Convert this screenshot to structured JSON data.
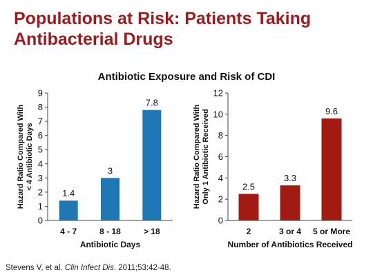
{
  "slide": {
    "title_line1": "Populations at Risk: Patients Taking",
    "title_line2": "Antibacterial Drugs",
    "title_color": "#9b1b1e"
  },
  "chart_title": "Antibiotic Exposure and Risk of CDI",
  "citation": {
    "authors": "Stevens V, et al. ",
    "journal": "Clin Infect Dis",
    "details": ". 2011;53:42-48."
  },
  "chart_data": [
    {
      "type": "bar",
      "title": "Antibiotic Exposure and Risk of CDI",
      "categories": [
        "4 - 7",
        "8 - 18",
        "> 18"
      ],
      "values": [
        1.4,
        3,
        7.8
      ],
      "value_labels": [
        "1.4",
        "3",
        "7.8"
      ],
      "xlabel": "Antibiotic Days",
      "ylabel_lines": [
        "Hazard Ratio Compared With",
        "< 4 Antibiotic Days"
      ],
      "ylim": [
        0,
        9
      ],
      "yticks": [
        0,
        1,
        2,
        3,
        4,
        5,
        6,
        7,
        8,
        9
      ],
      "bar_color": "#1f78b4",
      "grid": false
    },
    {
      "type": "bar",
      "title": "Antibiotic Exposure and Risk of CDI",
      "categories": [
        "2",
        "3 or 4",
        "5 or More"
      ],
      "values": [
        2.5,
        3.3,
        9.6
      ],
      "value_labels": [
        "2.5",
        "3.3",
        "9.6"
      ],
      "xlabel": "Number of Antibiotics Received",
      "ylabel_lines": [
        "Hazard Ratio Compared With",
        "Only 1 Antibiotic Received"
      ],
      "ylim": [
        0,
        12
      ],
      "yticks": [
        0,
        2,
        4,
        6,
        8,
        10,
        12
      ],
      "bar_color": "#a11b12",
      "grid": false
    }
  ]
}
